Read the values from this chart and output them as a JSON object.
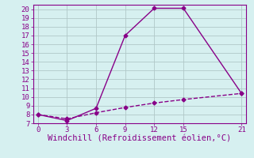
{
  "xlabel": "Windchill (Refroidissement éolien,°C)",
  "line1_x": [
    0,
    3,
    6,
    9,
    12,
    15,
    21
  ],
  "line1_y": [
    8,
    7.3,
    8.7,
    17,
    20.1,
    20.1,
    10.4
  ],
  "line2_x": [
    0,
    3,
    6,
    9,
    12,
    15,
    21
  ],
  "line2_y": [
    8,
    7.5,
    8.2,
    8.8,
    9.3,
    9.7,
    10.4
  ],
  "xlim": [
    -0.5,
    21.5
  ],
  "ylim": [
    7,
    20.5
  ],
  "yticks": [
    7,
    8,
    9,
    10,
    11,
    12,
    13,
    14,
    15,
    16,
    17,
    18,
    19,
    20
  ],
  "xticks": [
    0,
    3,
    6,
    9,
    12,
    15,
    21
  ],
  "line_color": "#880088",
  "bg_color": "#d6f0f0",
  "grid_color": "#b0c8c8",
  "marker": "D",
  "marker_size": 2.5,
  "line_width": 1.0,
  "xlabel_fontsize": 7.5,
  "tick_fontsize": 6.5
}
